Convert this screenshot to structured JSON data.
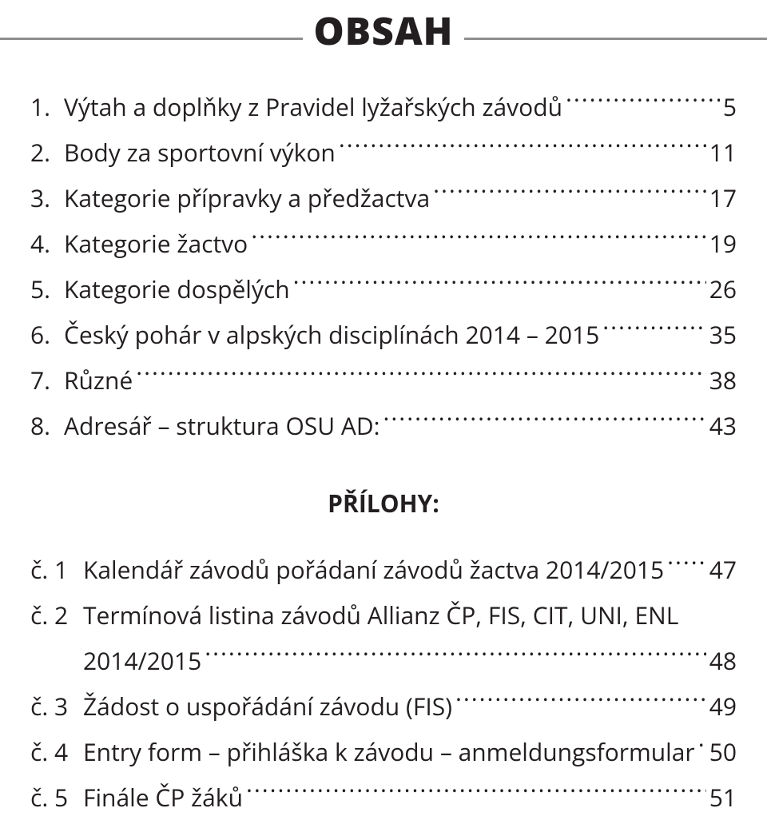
{
  "title": "OBSAH",
  "toc": [
    {
      "num": "1.",
      "label": "Výtah a doplňky z Pravidel lyžařských závodů",
      "page": "5"
    },
    {
      "num": "2.",
      "label": "Body za sportovní výkon",
      "page": "11"
    },
    {
      "num": "3.",
      "label": "Kategorie přípravky a předžactva",
      "page": "17"
    },
    {
      "num": "4.",
      "label": "Kategorie žactvo",
      "page": "19"
    },
    {
      "num": "5.",
      "label": "Kategorie dospělých",
      "page": "26"
    },
    {
      "num": "6.",
      "label": "Český pohár v alpských disciplínách 2014 – 2015",
      "page": "35"
    },
    {
      "num": "7.",
      "label": "Různé",
      "page": "38"
    },
    {
      "num": "8.",
      "label": "Adresář – struktura OSU AD:",
      "page": "43"
    }
  ],
  "attachments_heading": "PŘÍLOHY:",
  "attachments": [
    {
      "num": "č. 1",
      "label": "Kalendář závodů pořádaní závodů žactva 2014/2015",
      "page": "47"
    },
    {
      "num": "č. 2",
      "label1": "Termínová listina závodů Allianz ČP, FIS, CIT, UNI, ENL",
      "label2": "2014/2015",
      "page": "48",
      "multiline": true
    },
    {
      "num": "č. 3",
      "label": "Žádost o uspořádání závodu (FIS)",
      "page": "49"
    },
    {
      "num": "č. 4",
      "label": "Entry form – přihláška k závodu – anmeldungsformular",
      "page": "50"
    },
    {
      "num": "č. 5",
      "label": "Finále ČP žáků",
      "page": "51"
    }
  ]
}
